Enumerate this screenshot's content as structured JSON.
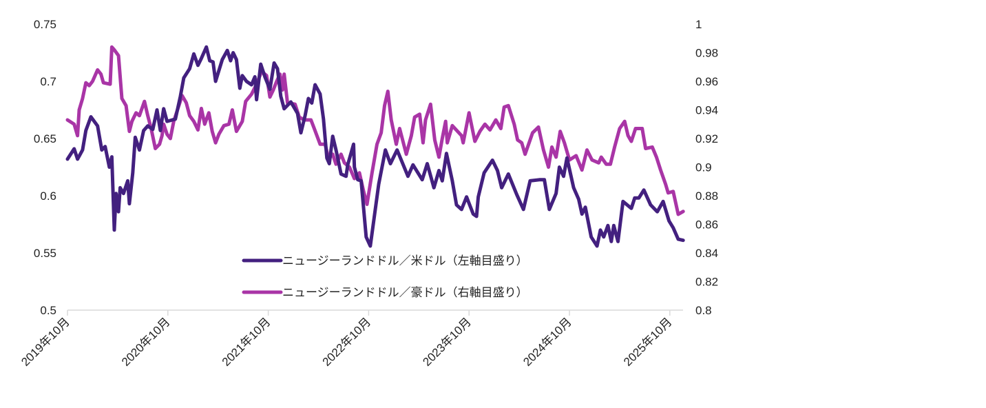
{
  "chart_data": {
    "type": "line",
    "title": "",
    "x_unit": "months since 2019年10月",
    "xlim": [
      0,
      74
    ],
    "x_ticks": [
      {
        "x": 0,
        "label": "2019年10月"
      },
      {
        "x": 12,
        "label": "2020年10月"
      },
      {
        "x": 24,
        "label": "2021年10月"
      },
      {
        "x": 36,
        "label": "2022年10月"
      },
      {
        "x": 48,
        "label": "2023年10月"
      },
      {
        "x": 60,
        "label": "2024年10月"
      },
      {
        "x": 72,
        "label": "2025年10月"
      }
    ],
    "y_left": {
      "lim": [
        0.5,
        0.75
      ],
      "ticks": [
        "0.5",
        "0.55",
        "0.6",
        "0.65",
        "0.7",
        "0.75"
      ]
    },
    "y_right": {
      "lim": [
        0.8,
        1.0
      ],
      "ticks": [
        "0.8",
        "0.82",
        "0.84",
        "0.86",
        "0.88",
        "0.9",
        "0.92",
        "0.94",
        "0.96",
        "0.98",
        "1"
      ]
    },
    "legend_position": "bottom-center-inside",
    "series": [
      {
        "name": "ニュージーランドドル／米ドル（左軸目盛り）",
        "axis": "left",
        "color": "#43207f",
        "points": [
          [
            0,
            0.632
          ],
          [
            0.8,
            0.641
          ],
          [
            1.2,
            0.632
          ],
          [
            1.8,
            0.64
          ],
          [
            2.2,
            0.657
          ],
          [
            2.8,
            0.669
          ],
          [
            3.6,
            0.661
          ],
          [
            4.1,
            0.64
          ],
          [
            4.5,
            0.643
          ],
          [
            5,
            0.625
          ],
          [
            5.3,
            0.634
          ],
          [
            5.6,
            0.57
          ],
          [
            5.8,
            0.602
          ],
          [
            6.1,
            0.586
          ],
          [
            6.3,
            0.607
          ],
          [
            6.7,
            0.602
          ],
          [
            7.2,
            0.613
          ],
          [
            7.4,
            0.593
          ],
          [
            7.8,
            0.62
          ],
          [
            8.1,
            0.651
          ],
          [
            8.6,
            0.64
          ],
          [
            9.1,
            0.657
          ],
          [
            9.6,
            0.661
          ],
          [
            10.2,
            0.658
          ],
          [
            10.7,
            0.675
          ],
          [
            11.1,
            0.657
          ],
          [
            11.5,
            0.676
          ],
          [
            11.9,
            0.665
          ],
          [
            12.9,
            0.667
          ],
          [
            13.5,
            0.687
          ],
          [
            13.9,
            0.703
          ],
          [
            14.6,
            0.711
          ],
          [
            15.1,
            0.724
          ],
          [
            15.6,
            0.714
          ],
          [
            16,
            0.72
          ],
          [
            16.6,
            0.73
          ],
          [
            17,
            0.718
          ],
          [
            17.4,
            0.717
          ],
          [
            17.7,
            0.7
          ],
          [
            18.5,
            0.719
          ],
          [
            19.1,
            0.727
          ],
          [
            19.5,
            0.718
          ],
          [
            19.8,
            0.725
          ],
          [
            20.2,
            0.719
          ],
          [
            20.6,
            0.694
          ],
          [
            20.9,
            0.705
          ],
          [
            21.4,
            0.7
          ],
          [
            22,
            0.697
          ],
          [
            22.4,
            0.704
          ],
          [
            22.6,
            0.684
          ],
          [
            23.1,
            0.715
          ],
          [
            23.6,
            0.704
          ],
          [
            24.2,
            0.693
          ],
          [
            24.7,
            0.716
          ],
          [
            25.1,
            0.711
          ],
          [
            25.5,
            0.687
          ],
          [
            25.9,
            0.676
          ],
          [
            26.7,
            0.682
          ],
          [
            27.5,
            0.672
          ],
          [
            27.9,
            0.655
          ],
          [
            28.4,
            0.67
          ],
          [
            28.8,
            0.685
          ],
          [
            29.2,
            0.681
          ],
          [
            29.6,
            0.697
          ],
          [
            30.2,
            0.689
          ],
          [
            30.6,
            0.667
          ],
          [
            31,
            0.633
          ],
          [
            31.3,
            0.628
          ],
          [
            31.7,
            0.652
          ],
          [
            32.1,
            0.64
          ],
          [
            32.7,
            0.619
          ],
          [
            33.3,
            0.617
          ],
          [
            33.5,
            0.627
          ],
          [
            34.2,
            0.645
          ],
          [
            34.3,
            0.625
          ],
          [
            34.7,
            0.614
          ],
          [
            35.1,
            0.613
          ],
          [
            35.7,
            0.564
          ],
          [
            36.2,
            0.556
          ],
          [
            37.2,
            0.61
          ],
          [
            38,
            0.64
          ],
          [
            38.6,
            0.628
          ],
          [
            39.4,
            0.64
          ],
          [
            40.7,
            0.617
          ],
          [
            41.3,
            0.627
          ],
          [
            42.4,
            0.614
          ],
          [
            43,
            0.628
          ],
          [
            43.8,
            0.607
          ],
          [
            44.4,
            0.622
          ],
          [
            44.8,
            0.613
          ],
          [
            45.3,
            0.637
          ],
          [
            46,
            0.613
          ],
          [
            46.5,
            0.592
          ],
          [
            47.1,
            0.588
          ],
          [
            47.7,
            0.599
          ],
          [
            48.5,
            0.584
          ],
          [
            48.9,
            0.582
          ],
          [
            49.1,
            0.599
          ],
          [
            49.8,
            0.62
          ],
          [
            50.8,
            0.631
          ],
          [
            51.4,
            0.622
          ],
          [
            51.9,
            0.607
          ],
          [
            52.7,
            0.619
          ],
          [
            53.7,
            0.601
          ],
          [
            54.5,
            0.588
          ],
          [
            55.3,
            0.613
          ],
          [
            56.4,
            0.614
          ],
          [
            57,
            0.614
          ],
          [
            57.6,
            0.588
          ],
          [
            58.4,
            0.602
          ],
          [
            58.8,
            0.625
          ],
          [
            59.3,
            0.617
          ],
          [
            59.7,
            0.633
          ],
          [
            60.5,
            0.607
          ],
          [
            61.1,
            0.597
          ],
          [
            61.5,
            0.584
          ],
          [
            61.9,
            0.59
          ],
          [
            62.6,
            0.564
          ],
          [
            63.3,
            0.556
          ],
          [
            63.7,
            0.57
          ],
          [
            64.1,
            0.564
          ],
          [
            64.6,
            0.574
          ],
          [
            65,
            0.56
          ],
          [
            65.3,
            0.574
          ],
          [
            65.8,
            0.56
          ],
          [
            66.4,
            0.595
          ],
          [
            67.4,
            0.589
          ],
          [
            67.8,
            0.598
          ],
          [
            68.3,
            0.598
          ],
          [
            68.9,
            0.605
          ],
          [
            69.7,
            0.592
          ],
          [
            70.5,
            0.586
          ],
          [
            71.2,
            0.595
          ],
          [
            71.9,
            0.578
          ],
          [
            72.4,
            0.572
          ],
          [
            73,
            0.562
          ],
          [
            73.6,
            0.561
          ]
        ]
      },
      {
        "name": "ニュージーランドドル／豪ドル（右軸目盛り）",
        "axis": "right",
        "color": "#a935a6",
        "points": [
          [
            0,
            0.933
          ],
          [
            0.8,
            0.93
          ],
          [
            1.2,
            0.922
          ],
          [
            1.4,
            0.94
          ],
          [
            1.8,
            0.948
          ],
          [
            2.2,
            0.959
          ],
          [
            2.6,
            0.957
          ],
          [
            3,
            0.96
          ],
          [
            3.6,
            0.968
          ],
          [
            4,
            0.965
          ],
          [
            4.3,
            0.959
          ],
          [
            5.1,
            0.958
          ],
          [
            5.3,
            0.984
          ],
          [
            5.6,
            0.982
          ],
          [
            6.1,
            0.978
          ],
          [
            6.5,
            0.948
          ],
          [
            7,
            0.943
          ],
          [
            7.4,
            0.925
          ],
          [
            7.7,
            0.932
          ],
          [
            8.2,
            0.938
          ],
          [
            8.6,
            0.936
          ],
          [
            9.2,
            0.946
          ],
          [
            9.6,
            0.936
          ],
          [
            10,
            0.927
          ],
          [
            10.5,
            0.913
          ],
          [
            11,
            0.916
          ],
          [
            11.3,
            0.922
          ],
          [
            11.5,
            0.93
          ],
          [
            11.9,
            0.923
          ],
          [
            12.3,
            0.92
          ],
          [
            12.7,
            0.932
          ],
          [
            13.2,
            0.941
          ],
          [
            13.7,
            0.95
          ],
          [
            14.2,
            0.945
          ],
          [
            14.6,
            0.936
          ],
          [
            15.1,
            0.932
          ],
          [
            15.6,
            0.926
          ],
          [
            16,
            0.941
          ],
          [
            16.4,
            0.93
          ],
          [
            16.9,
            0.938
          ],
          [
            17.3,
            0.925
          ],
          [
            17.7,
            0.917
          ],
          [
            18.1,
            0.923
          ],
          [
            18.7,
            0.929
          ],
          [
            19.3,
            0.93
          ],
          [
            19.7,
            0.94
          ],
          [
            20.2,
            0.925
          ],
          [
            20.9,
            0.932
          ],
          [
            21.3,
            0.946
          ],
          [
            22,
            0.951
          ],
          [
            22.6,
            0.958
          ],
          [
            23.2,
            0.967
          ],
          [
            23.8,
            0.964
          ],
          [
            24.2,
            0.949
          ],
          [
            24.6,
            0.954
          ],
          [
            25,
            0.96
          ],
          [
            25.4,
            0.965
          ],
          [
            25.7,
            0.954
          ],
          [
            25.9,
            0.965
          ],
          [
            26.3,
            0.945
          ],
          [
            27.2,
            0.944
          ],
          [
            27.7,
            0.935
          ],
          [
            28.3,
            0.933
          ],
          [
            29.1,
            0.933
          ],
          [
            29.5,
            0.927
          ],
          [
            30.2,
            0.916
          ],
          [
            30.8,
            0.916
          ],
          [
            31.2,
            0.906
          ],
          [
            31.7,
            0.909
          ],
          [
            32.1,
            0.902
          ],
          [
            32.7,
            0.909
          ],
          [
            33.1,
            0.903
          ],
          [
            33.7,
            0.9
          ],
          [
            34.3,
            0.892
          ],
          [
            34.9,
            0.896
          ],
          [
            35.4,
            0.883
          ],
          [
            35.8,
            0.874
          ],
          [
            36.4,
            0.896
          ],
          [
            37,
            0.916
          ],
          [
            37.5,
            0.924
          ],
          [
            37.9,
            0.943
          ],
          [
            38.3,
            0.953
          ],
          [
            38.7,
            0.933
          ],
          [
            39.3,
            0.916
          ],
          [
            39.7,
            0.927
          ],
          [
            40.5,
            0.909
          ],
          [
            41.1,
            0.922
          ],
          [
            41.5,
            0.935
          ],
          [
            42.1,
            0.937
          ],
          [
            42.5,
            0.917
          ],
          [
            42.8,
            0.933
          ],
          [
            43.4,
            0.944
          ],
          [
            43.9,
            0.919
          ],
          [
            44.4,
            0.907
          ],
          [
            44.8,
            0.92
          ],
          [
            45.2,
            0.932
          ],
          [
            45.4,
            0.917
          ],
          [
            46,
            0.929
          ],
          [
            47.1,
            0.922
          ],
          [
            47.3,
            0.917
          ],
          [
            48,
            0.938
          ],
          [
            48.7,
            0.918
          ],
          [
            49.3,
            0.925
          ],
          [
            49.9,
            0.93
          ],
          [
            50.5,
            0.926
          ],
          [
            51.2,
            0.933
          ],
          [
            51.8,
            0.927
          ],
          [
            52.2,
            0.942
          ],
          [
            52.7,
            0.943
          ],
          [
            53.4,
            0.93
          ],
          [
            53.8,
            0.919
          ],
          [
            54.3,
            0.917
          ],
          [
            54.7,
            0.909
          ],
          [
            55.6,
            0.924
          ],
          [
            56.3,
            0.928
          ],
          [
            56.9,
            0.912
          ],
          [
            57.5,
            0.9
          ],
          [
            57.9,
            0.914
          ],
          [
            58.4,
            0.907
          ],
          [
            58.9,
            0.925
          ],
          [
            59.4,
            0.917
          ],
          [
            60,
            0.905
          ],
          [
            60.8,
            0.908
          ],
          [
            61.5,
            0.898
          ],
          [
            62.1,
            0.912
          ],
          [
            62.7,
            0.905
          ],
          [
            63.5,
            0.903
          ],
          [
            63.8,
            0.907
          ],
          [
            64.4,
            0.902
          ],
          [
            64.9,
            0.902
          ],
          [
            65.4,
            0.914
          ],
          [
            66,
            0.927
          ],
          [
            66.6,
            0.932
          ],
          [
            67,
            0.922
          ],
          [
            67.4,
            0.918
          ],
          [
            67.9,
            0.927
          ],
          [
            68.7,
            0.927
          ],
          [
            69.1,
            0.913
          ],
          [
            69.9,
            0.914
          ],
          [
            70.4,
            0.907
          ],
          [
            70.9,
            0.898
          ],
          [
            71.5,
            0.888
          ],
          [
            71.8,
            0.882
          ],
          [
            72.4,
            0.883
          ],
          [
            73,
            0.867
          ],
          [
            73.6,
            0.869
          ]
        ]
      }
    ]
  }
}
